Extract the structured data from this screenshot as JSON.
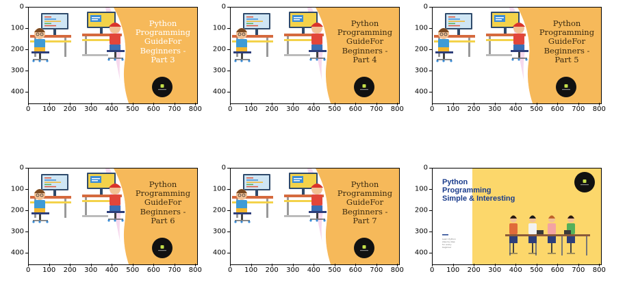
{
  "axes": {
    "x_ticks": [
      "0",
      "100",
      "200",
      "300",
      "400",
      "500",
      "600",
      "700",
      "800"
    ],
    "y_ticks": [
      "0",
      "100",
      "200",
      "300",
      "400"
    ]
  },
  "images": [
    {
      "title_lines": [
        "Python",
        "Programming",
        "GuideFor",
        "Beginners -",
        "Part 3"
      ],
      "title_color": "#ffffff"
    },
    {
      "title_lines": [
        "Python",
        "Programming",
        "GuideFor",
        "Beginners -",
        "Part 4"
      ],
      "title_color": "#3a2a10"
    },
    {
      "title_lines": [
        "Python",
        "Programming",
        "GuideFor",
        "Beginners -",
        "Part 5"
      ],
      "title_color": "#3a2a10"
    },
    {
      "title_lines": [
        "Python",
        "Programming",
        "GuideFor",
        "Beginners -",
        "Part 6"
      ],
      "title_color": "#3a2a10"
    },
    {
      "title_lines": [
        "Python",
        "Programming",
        "GuideFor",
        "Beginners -",
        "Part 7"
      ],
      "title_color": "#3a2a10"
    },
    {
      "title_lines": [
        "Python",
        "Programming",
        "Simple & Interesting"
      ],
      "title_color": "#1a3c8c",
      "small_lines": [
        "Learn Python",
        "step by step",
        "for every",
        "beginner"
      ]
    }
  ],
  "colors": {
    "orange": "#f6b95a",
    "pink": "#f6d9ee",
    "yellow": "#fcd76b",
    "badge": "#111111",
    "badge_inner": "#c4e04a"
  }
}
